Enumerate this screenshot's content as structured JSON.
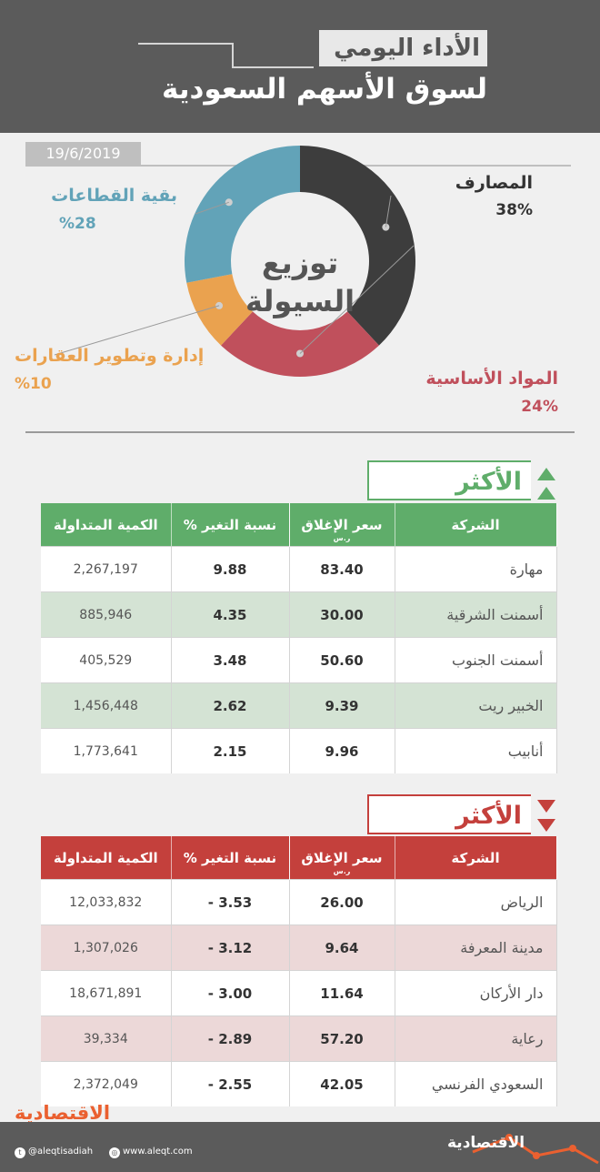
{
  "header": {
    "subtitle": "الأداء اليومي",
    "title": "لسوق الأسهم السعودية"
  },
  "date": "19/6/2019",
  "chart_data": {
    "type": "pie",
    "title": "توزيع السيولة",
    "title_line1": "توزيع",
    "title_line2": "السيولة",
    "slices": [
      {
        "label": "المصارف",
        "value_text": "38%",
        "value": 38,
        "color": "#3d3d3d"
      },
      {
        "label": "المواد الأساسية",
        "value_text": "24%",
        "value": 24,
        "color": "#c0505c"
      },
      {
        "label": "إدارة وتطوير العقارات",
        "value_text": "%10",
        "value": 10,
        "color": "#eaa24f"
      },
      {
        "label": "بقية القطاعات",
        "value_text": "%28",
        "value": 28,
        "color": "#62a3b8"
      }
    ]
  },
  "gainers": {
    "title": "الأكثر ارتفاعا",
    "columns": [
      "الشركة",
      "سعر الإغلاق",
      "نسبة التغير %",
      "الكمية المتداولة"
    ],
    "currency_note": "ر.س",
    "rows": [
      {
        "name": "مهارة",
        "close": "83.40",
        "change": "9.88",
        "volume": "2,267,197"
      },
      {
        "name": "أسمنت الشرقية",
        "close": "30.00",
        "change": "4.35",
        "volume": "885,946"
      },
      {
        "name": "أسمنت الجنوب",
        "close": "50.60",
        "change": "3.48",
        "volume": "405,529"
      },
      {
        "name": "الخبير ريت",
        "close": "9.39",
        "change": "2.62",
        "volume": "1,456,448"
      },
      {
        "name": "أنابيب",
        "close": "9.96",
        "change": "2.15",
        "volume": "1,773,641"
      }
    ]
  },
  "losers": {
    "title": "الأكثر انخفاضا",
    "columns": [
      "الشركة",
      "سعر الإغلاق",
      "نسبة التغير %",
      "الكمية المتداولة"
    ],
    "currency_note": "ر.س",
    "rows": [
      {
        "name": "الرياض",
        "close": "26.00",
        "change": "3.53 -",
        "volume": "12,033,832"
      },
      {
        "name": "مدينة المعرفة",
        "close": "9.64",
        "change": "3.12 -",
        "volume": "1,307,026"
      },
      {
        "name": "دار الأركان",
        "close": "11.64",
        "change": "3.00 -",
        "volume": "18,671,891"
      },
      {
        "name": "رعاية",
        "close": "57.20",
        "change": "2.89 -",
        "volume": "39,334"
      },
      {
        "name": "السعودي الفرنسي",
        "close": "42.05",
        "change": "2.55 -",
        "volume": "2,372,049"
      }
    ]
  },
  "footer": {
    "brand": "الاقتصادية",
    "twitter": "@aleqtisadiah",
    "website": "www.aleqt.com",
    "logo": "الاقتصادية"
  },
  "colors": {
    "header_bg": "#5b5b5b",
    "green": "#5fad6a",
    "red": "#c4403c",
    "brand_orange": "#ea6030"
  }
}
